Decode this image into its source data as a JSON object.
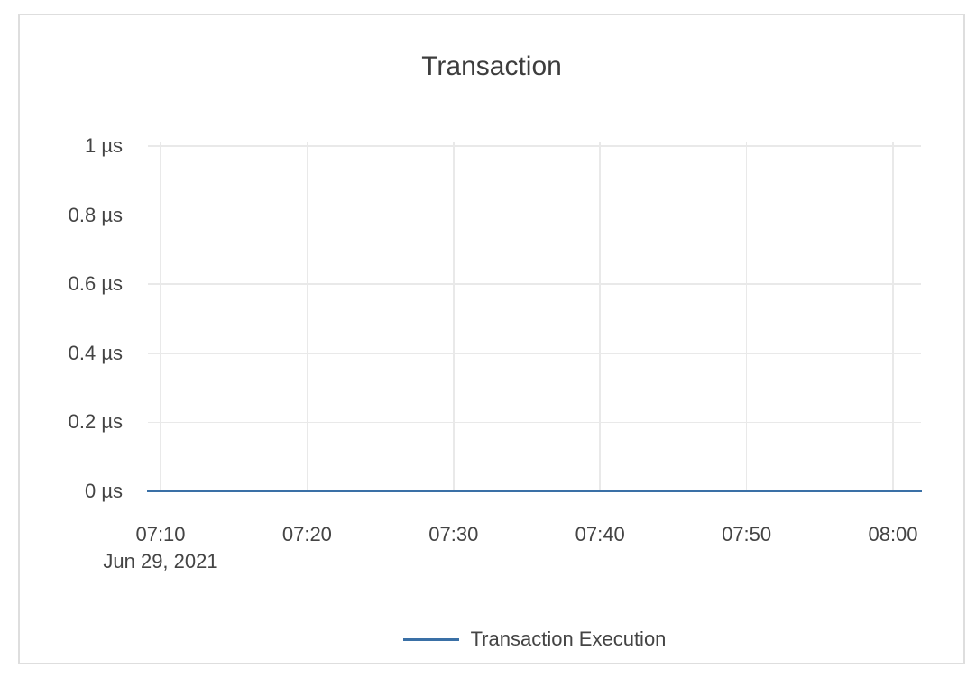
{
  "chart": {
    "title": "Transaction",
    "x_date_label": "Jun 29, 2021"
  },
  "legend": {
    "items": [
      {
        "label": "Transaction Execution",
        "color": "#3a70a6"
      }
    ]
  },
  "colors": {
    "series_blue": "#3a70a6",
    "grid": "#e9e9e9",
    "axis_text": "#444444",
    "title_text": "#3d3d3d",
    "card_border": "#dedede",
    "background": "#ffffff"
  },
  "chart_data": {
    "type": "line",
    "title": "Transaction",
    "xlabel": "",
    "ylabel": "",
    "x_tick_labels": [
      "07:10",
      "07:20",
      "07:30",
      "07:40",
      "07:50",
      "08:00"
    ],
    "x_date_label": "Jun 29, 2021",
    "x_range": [
      "07:09",
      "08:02"
    ],
    "y_tick_labels": [
      "0 µs",
      "0.2 µs",
      "0.4 µs",
      "0.6 µs",
      "0.8 µs",
      "1 µs"
    ],
    "ylim": [
      0,
      1
    ],
    "y_unit": "µs",
    "grid": true,
    "legend_position": "bottom-center",
    "series": [
      {
        "name": "Transaction Execution",
        "color": "#3a70a6",
        "x": [
          "07:10",
          "07:20",
          "07:30",
          "07:40",
          "07:50",
          "08:00"
        ],
        "values": [
          0,
          0,
          0,
          0,
          0,
          0
        ],
        "note": "constant flat line at 0 µs across the entire time range"
      }
    ]
  }
}
